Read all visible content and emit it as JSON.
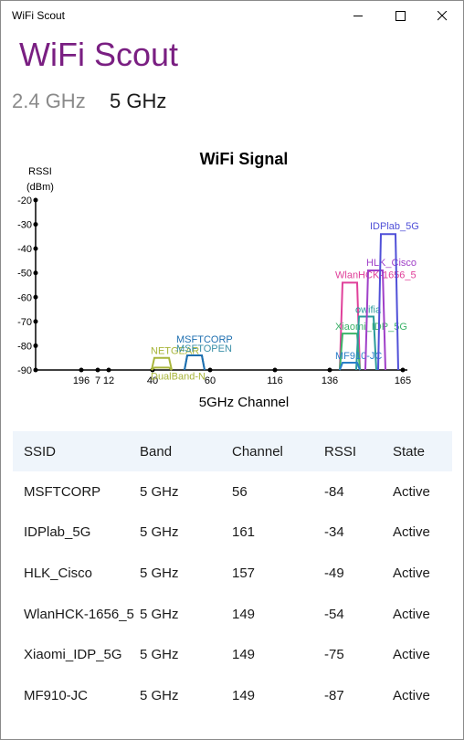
{
  "window": {
    "title": "WiFi Scout"
  },
  "app": {
    "title": "WiFi Scout",
    "title_color": "#7a1f82"
  },
  "tabs": [
    {
      "label": "2.4 GHz",
      "selected": false
    },
    {
      "label": "5 GHz",
      "selected": true
    }
  ],
  "chart_data": {
    "type": "area",
    "title": "WiFi Signal",
    "ylabel": "RSSI\n(dBm)",
    "xlabel": "5GHz Channel",
    "ylim": [
      -90,
      -20
    ],
    "yticks": [
      -20,
      -30,
      -40,
      -50,
      -60,
      -70,
      -80,
      -90
    ],
    "xticks": [
      196,
      7,
      12,
      40,
      60,
      116,
      136,
      165
    ],
    "grid": false,
    "series": [
      {
        "name": "NETGEAR",
        "channel": 44,
        "rssi": -85,
        "color": "#a8b53a"
      },
      {
        "name": "DualBand-N",
        "channel": 44,
        "rssi": -89,
        "color": "#a8b53a"
      },
      {
        "name": "MSFTOPEN",
        "channel": 56,
        "rssi": -84,
        "color": "#3a8fa8"
      },
      {
        "name": "MSFTCORP",
        "channel": 56,
        "rssi": -84,
        "color": "#1e6fb0"
      },
      {
        "name": "WlanHCK-1656_5",
        "channel": 149,
        "rssi": -54,
        "color": "#e0409a"
      },
      {
        "name": "Xiaomi_IDP_5G",
        "channel": 149,
        "rssi": -75,
        "color": "#3db36a"
      },
      {
        "name": "owifia",
        "channel": 153,
        "rssi": -68,
        "color": "#2a9a9a"
      },
      {
        "name": "MF910-JC",
        "channel": 149,
        "rssi": -87,
        "color": "#2a7fc8"
      },
      {
        "name": "HLK_Cisco",
        "channel": 157,
        "rssi": -49,
        "color": "#a040c8"
      },
      {
        "name": "IDPlab_5G",
        "channel": 161,
        "rssi": -34,
        "color": "#5050d8"
      }
    ]
  },
  "table": {
    "headers": [
      "SSID",
      "Band",
      "Channel",
      "RSSI",
      "State"
    ],
    "rows": [
      [
        "MSFTCORP",
        "5 GHz",
        "56",
        "-84",
        "Active"
      ],
      [
        "IDPlab_5G",
        "5 GHz",
        "161",
        "-34",
        "Active"
      ],
      [
        "HLK_Cisco",
        "5 GHz",
        "157",
        "-49",
        "Active"
      ],
      [
        "WlanHCK-1656_5",
        "5 GHz",
        "149",
        "-54",
        "Active"
      ],
      [
        "Xiaomi_IDP_5G",
        "5 GHz",
        "149",
        "-75",
        "Active"
      ],
      [
        "MF910-JC",
        "5 GHz",
        "149",
        "-87",
        "Active"
      ]
    ]
  }
}
